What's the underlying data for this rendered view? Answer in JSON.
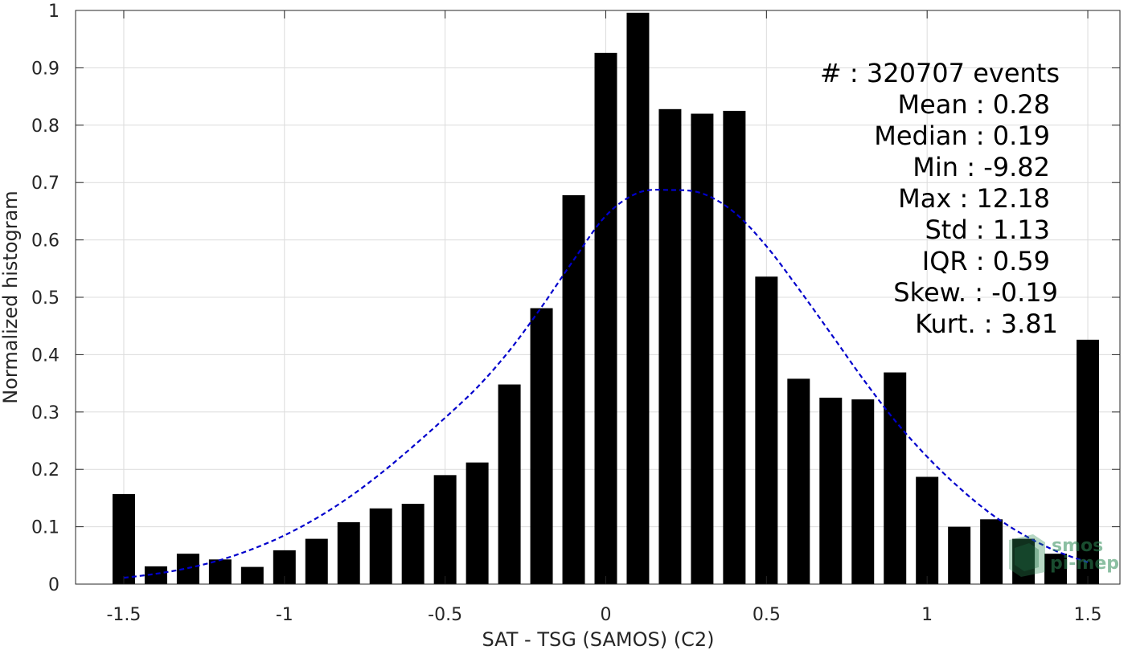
{
  "chart_data": {
    "type": "bar",
    "xlabel": "SAT - TSG (SAMOS) (C2)",
    "ylabel": "Normalized histogram",
    "xlim": [
      -1.65,
      1.6
    ],
    "ylim": [
      0,
      1
    ],
    "xticks": [
      -1.5,
      -1,
      -0.5,
      0,
      0.5,
      1,
      1.5
    ],
    "xtick_labels": [
      "-1.5",
      "-1",
      "-0.5",
      "0",
      "0.5",
      "1",
      "1.5"
    ],
    "yticks": [
      0,
      0.1,
      0.2,
      0.3,
      0.4,
      0.5,
      0.6,
      0.7,
      0.8,
      0.9,
      1
    ],
    "ytick_labels": [
      "0",
      "0.1",
      "0.2",
      "0.3",
      "0.4",
      "0.5",
      "0.6",
      "0.7",
      "0.8",
      "0.9",
      "1"
    ],
    "grid": true,
    "bar_width": 0.07,
    "x": [
      -1.5,
      -1.4,
      -1.3,
      -1.2,
      -1.1,
      -1.0,
      -0.9,
      -0.8,
      -0.7,
      -0.6,
      -0.5,
      -0.4,
      -0.3,
      -0.2,
      -0.1,
      0.0,
      0.1,
      0.2,
      0.3,
      0.4,
      0.5,
      0.6,
      0.7,
      0.8,
      0.9,
      1.0,
      1.1,
      1.2,
      1.3,
      1.4,
      1.5
    ],
    "values": [
      0.157,
      0.031,
      0.053,
      0.043,
      0.03,
      0.059,
      0.079,
      0.108,
      0.132,
      0.14,
      0.19,
      0.212,
      0.348,
      0.481,
      0.678,
      0.926,
      0.996,
      0.828,
      0.82,
      0.825,
      0.536,
      0.358,
      0.325,
      0.322,
      0.369,
      0.187,
      0.1,
      0.113,
      0.079,
      0.053,
      0.426
    ],
    "bar_color": "#000000",
    "fit_curve": {
      "style": "dashed",
      "color": "#0000cc",
      "x": [
        -1.5,
        -1.4,
        -1.3,
        -1.2,
        -1.1,
        -1.0,
        -0.9,
        -0.8,
        -0.7,
        -0.6,
        -0.5,
        -0.4,
        -0.3,
        -0.2,
        -0.1,
        0.0,
        0.1,
        0.2,
        0.3,
        0.4,
        0.5,
        0.6,
        0.7,
        0.8,
        0.9,
        1.0,
        1.1,
        1.2,
        1.3,
        1.4,
        1.5
      ],
      "y": [
        0.011,
        0.018,
        0.028,
        0.042,
        0.061,
        0.085,
        0.115,
        0.151,
        0.193,
        0.24,
        0.29,
        0.343,
        0.407,
        0.483,
        0.565,
        0.642,
        0.682,
        0.687,
        0.681,
        0.648,
        0.589,
        0.515,
        0.437,
        0.358,
        0.285,
        0.222,
        0.168,
        0.122,
        0.086,
        0.058,
        0.038
      ]
    },
    "stats": [
      {
        "label": "#  : 320707 events"
      },
      {
        "label": "Mean : 0.28"
      },
      {
        "label": "Median : 0.19"
      },
      {
        "label": "Min : -9.82"
      },
      {
        "label": "Max : 12.18"
      },
      {
        "label": "Std : 1.13"
      },
      {
        "label": "IQR : 0.59"
      },
      {
        "label": "Skew. : -0.19"
      },
      {
        "label": "Kurt. : 3.81"
      }
    ]
  },
  "watermark": {
    "line1": "smos",
    "line2": "pi-mep"
  }
}
